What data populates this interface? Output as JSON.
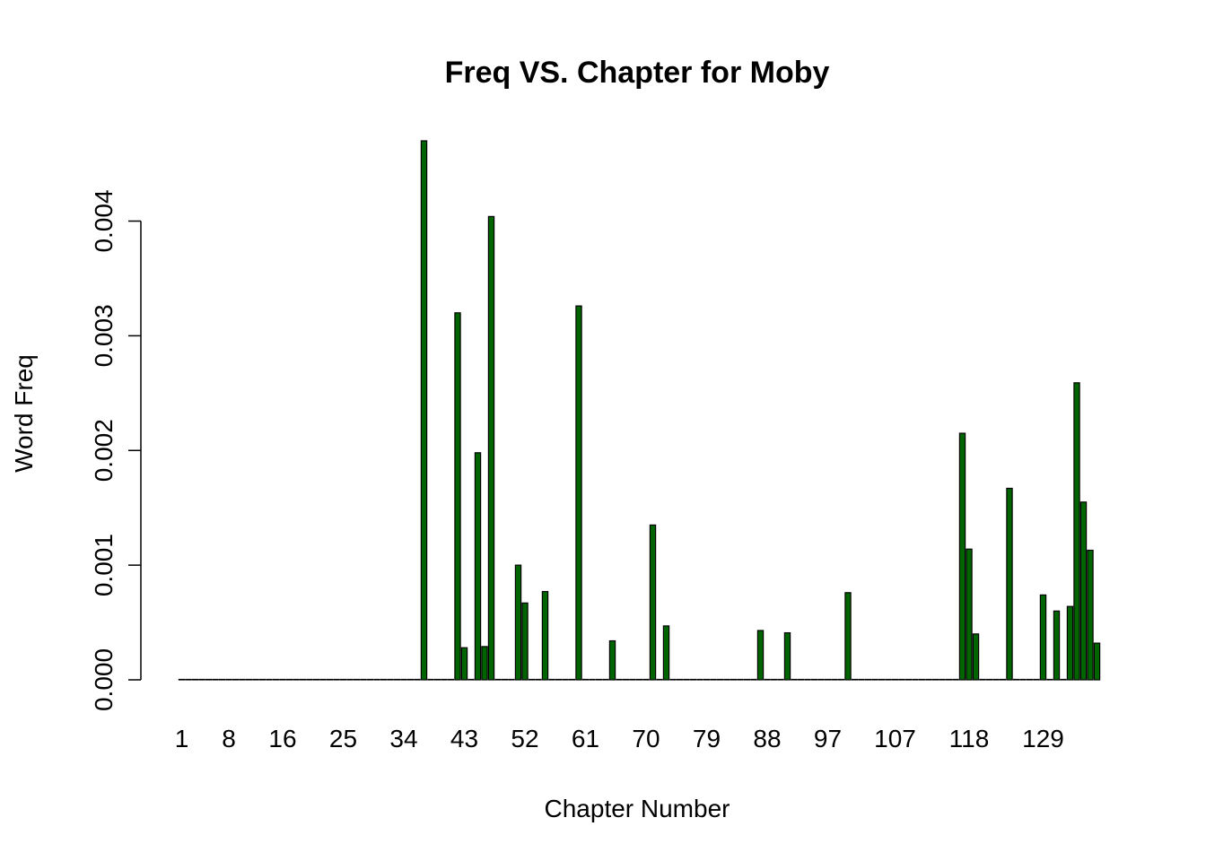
{
  "chart_data": {
    "type": "bar",
    "title": "Freq VS. Chapter for Moby",
    "xlabel": "Chapter Number",
    "ylabel": "Word Freq",
    "ylim": [
      0,
      0.0047
    ],
    "yticks": [
      "0.000",
      "0.001",
      "0.002",
      "0.003",
      "0.004"
    ],
    "ytick_values": [
      0,
      0.001,
      0.002,
      0.003,
      0.004
    ],
    "xtick_labels": [
      "1",
      "8",
      "16",
      "25",
      "34",
      "43",
      "52",
      "61",
      "70",
      "79",
      "88",
      "97",
      "107",
      "118",
      "129"
    ],
    "xtick_chapters": [
      1,
      8,
      16,
      25,
      34,
      43,
      52,
      61,
      70,
      79,
      88,
      97,
      107,
      118,
      129
    ],
    "chapter_count": 137,
    "grid": false,
    "legend": "none",
    "bar_color": "#006400",
    "bar_edge_color": "#000000",
    "values": [
      0,
      0,
      0,
      0,
      0,
      0,
      0,
      0,
      0,
      0,
      0,
      0,
      0,
      0,
      0,
      0,
      0,
      0,
      0,
      0,
      0,
      0,
      0,
      0,
      0,
      0,
      0,
      0,
      0,
      0,
      0,
      0,
      0,
      0,
      0,
      0,
      0.0047,
      0,
      0,
      0,
      0,
      0.0032,
      0.00028,
      0,
      0.00198,
      0.00029,
      0.00404,
      0,
      0,
      0,
      0.001,
      0.00067,
      0,
      0,
      0.00077,
      0,
      0,
      0,
      0,
      0.00326,
      0,
      0,
      0,
      0,
      0.00034,
      0,
      0,
      0,
      0,
      0,
      0.00135,
      0,
      0.00047,
      0,
      0,
      0,
      0,
      0,
      0,
      0,
      0,
      0,
      0,
      0,
      0,
      0,
      0.00043,
      0,
      0,
      0,
      0.00041,
      0,
      0,
      0,
      0,
      0,
      0,
      0,
      0,
      0.00076,
      0,
      0,
      0,
      0,
      0,
      0,
      0,
      0,
      0,
      0,
      0,
      0,
      0,
      0,
      0,
      0,
      0.00215,
      0.00114,
      0.0004,
      0,
      0,
      0,
      0,
      0.00167,
      0,
      0,
      0,
      0,
      0.00074,
      0,
      0.0006,
      0,
      0.00064,
      0.00259,
      0.00155,
      0.00113,
      0.00032
    ]
  }
}
